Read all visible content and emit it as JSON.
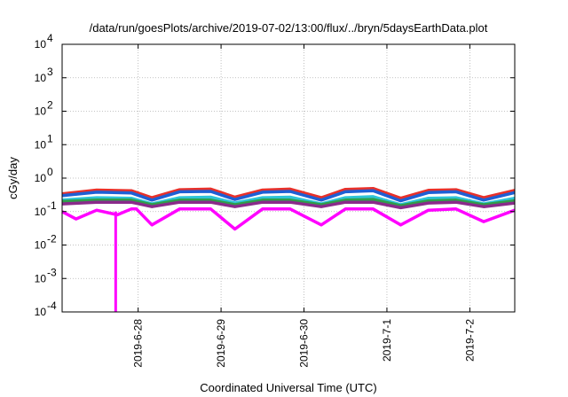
{
  "chart_data": {
    "type": "line",
    "title": "/data/run/goesPlots/archive/2019-07-02/13:00/flux/../bryn/5daysEarthData.plot",
    "xlabel": "Coordinated Universal Time (UTC)",
    "ylabel": "cGy/day",
    "yscale": "log",
    "ylim": [
      0.0001,
      10000
    ],
    "xlim": [
      "2019-06-27 02:00",
      "2019-07-02 13:00"
    ],
    "y_ticks": [
      {
        "base": "10",
        "exp": "-4",
        "value": 0.0001
      },
      {
        "base": "10",
        "exp": "-3",
        "value": 0.001
      },
      {
        "base": "10",
        "exp": "-2",
        "value": 0.01
      },
      {
        "base": "10",
        "exp": "-1",
        "value": 0.1
      },
      {
        "base": "10",
        "exp": "0",
        "value": 1
      },
      {
        "base": "10",
        "exp": "1",
        "value": 10
      },
      {
        "base": "10",
        "exp": "2",
        "value": 100
      },
      {
        "base": "10",
        "exp": "3",
        "value": 1000
      },
      {
        "base": "10",
        "exp": "4",
        "value": 10000
      }
    ],
    "x_ticks": [
      {
        "label": "2019-6-28",
        "value": "2019-06-28 00:00"
      },
      {
        "label": "2019-6-29",
        "value": "2019-06-29 00:00"
      },
      {
        "label": "2019-6-30",
        "value": "2019-06-30 00:00"
      },
      {
        "label": "2019-7-1",
        "value": "2019-07-01 00:00"
      },
      {
        "label": "2019-7-2",
        "value": "2019-07-02 00:00"
      }
    ],
    "grid": true,
    "legend": "none",
    "series": [
      {
        "color": "#e8302a",
        "x": [
          "2019-06-27 02:00",
          "2019-06-27 12:00",
          "2019-06-27 22:00",
          "2019-06-28 04:00",
          "2019-06-28 12:00",
          "2019-06-28 21:00",
          "2019-06-29 04:00",
          "2019-06-29 12:00",
          "2019-06-29 20:00",
          "2019-06-30 05:00",
          "2019-06-30 12:00",
          "2019-06-30 20:00",
          "2019-07-01 04:00",
          "2019-07-01 12:00",
          "2019-07-01 20:00",
          "2019-07-02 04:00",
          "2019-07-02 13:00"
        ],
        "y": [
          0.34,
          0.44,
          0.42,
          0.26,
          0.45,
          0.47,
          0.27,
          0.44,
          0.47,
          0.26,
          0.46,
          0.49,
          0.25,
          0.43,
          0.45,
          0.26,
          0.43
        ]
      },
      {
        "color": "#1e5fd4",
        "x": [
          "2019-06-27 02:00",
          "2019-06-27 12:00",
          "2019-06-27 22:00",
          "2019-06-28 04:00",
          "2019-06-28 12:00",
          "2019-06-28 21:00",
          "2019-06-29 04:00",
          "2019-06-29 12:00",
          "2019-06-29 20:00",
          "2019-06-30 05:00",
          "2019-06-30 12:00",
          "2019-06-30 20:00",
          "2019-07-01 04:00",
          "2019-07-01 12:00",
          "2019-07-01 20:00",
          "2019-07-02 04:00",
          "2019-07-02 13:00"
        ],
        "y": [
          0.3,
          0.38,
          0.36,
          0.22,
          0.39,
          0.4,
          0.23,
          0.38,
          0.4,
          0.22,
          0.39,
          0.42,
          0.21,
          0.37,
          0.39,
          0.22,
          0.37
        ]
      },
      {
        "color": "#2ec4d6",
        "x": [
          "2019-06-27 02:00",
          "2019-06-27 12:00",
          "2019-06-27 22:00",
          "2019-06-28 04:00",
          "2019-06-28 12:00",
          "2019-06-28 21:00",
          "2019-06-29 04:00",
          "2019-06-29 12:00",
          "2019-06-29 20:00",
          "2019-06-30 05:00",
          "2019-06-30 12:00",
          "2019-06-30 20:00",
          "2019-07-01 04:00",
          "2019-07-01 12:00",
          "2019-07-01 20:00",
          "2019-07-02 04:00",
          "2019-07-02 13:00"
        ],
        "y": [
          0.22,
          0.26,
          0.25,
          0.17,
          0.26,
          0.27,
          0.18,
          0.26,
          0.27,
          0.17,
          0.26,
          0.28,
          0.16,
          0.25,
          0.26,
          0.17,
          0.25
        ]
      },
      {
        "color": "#2e9e4a",
        "x": [
          "2019-06-27 02:00",
          "2019-06-27 12:00",
          "2019-06-27 22:00",
          "2019-06-28 04:00",
          "2019-06-28 12:00",
          "2019-06-28 21:00",
          "2019-06-29 04:00",
          "2019-06-29 12:00",
          "2019-06-29 20:00",
          "2019-06-30 05:00",
          "2019-06-30 12:00",
          "2019-06-30 20:00",
          "2019-07-01 04:00",
          "2019-07-01 12:00",
          "2019-07-01 20:00",
          "2019-07-02 04:00",
          "2019-07-02 13:00"
        ],
        "y": [
          0.2,
          0.22,
          0.22,
          0.16,
          0.22,
          0.22,
          0.16,
          0.22,
          0.22,
          0.16,
          0.22,
          0.23,
          0.15,
          0.21,
          0.22,
          0.16,
          0.21
        ]
      },
      {
        "color": "#8a2a8a",
        "x": [
          "2019-06-27 02:00",
          "2019-06-27 12:00",
          "2019-06-27 22:00",
          "2019-06-28 04:00",
          "2019-06-28 12:00",
          "2019-06-28 21:00",
          "2019-06-29 04:00",
          "2019-06-29 12:00",
          "2019-06-29 20:00",
          "2019-06-30 05:00",
          "2019-06-30 12:00",
          "2019-06-30 20:00",
          "2019-07-01 04:00",
          "2019-07-01 12:00",
          "2019-07-01 20:00",
          "2019-07-02 04:00",
          "2019-07-02 13:00"
        ],
        "y": [
          0.17,
          0.19,
          0.19,
          0.14,
          0.19,
          0.19,
          0.14,
          0.19,
          0.19,
          0.14,
          0.19,
          0.19,
          0.13,
          0.18,
          0.19,
          0.14,
          0.18
        ]
      },
      {
        "color": "#ff00ff",
        "x": [
          "2019-06-27 02:00",
          "2019-06-27 06:00",
          "2019-06-27 12:00",
          "2019-06-27 18:00",
          "2019-06-27 22:00",
          "2019-06-27 23:30",
          "2019-06-28 04:00",
          "2019-06-28 12:00",
          "2019-06-28 21:00",
          "2019-06-29 04:00",
          "2019-06-29 12:00",
          "2019-06-29 20:00",
          "2019-06-30 05:00",
          "2019-06-30 12:00",
          "2019-06-30 20:00",
          "2019-07-01 04:00",
          "2019-07-01 12:00",
          "2019-07-01 20:00",
          "2019-07-02 04:00",
          "2019-07-02 13:00"
        ],
        "y": [
          0.1,
          0.06,
          0.11,
          0.08,
          0.12,
          0.12,
          0.04,
          0.12,
          0.12,
          0.03,
          0.12,
          0.12,
          0.04,
          0.12,
          0.12,
          0.04,
          0.11,
          0.12,
          0.05,
          0.11
        ],
        "dropout": {
          "x": "2019-06-27 17:30",
          "y": 0.0001
        }
      }
    ]
  }
}
